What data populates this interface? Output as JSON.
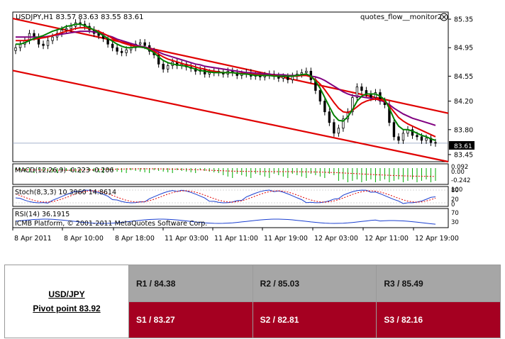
{
  "chart_header": {
    "symbol_info": "USDJPY,H1  83.57 83.63 83.55 83.61",
    "monitor_label": "quotes_flow__monitor2",
    "close_icon": "close-circle-icon"
  },
  "price_axis": {
    "ticks": [
      "85.35",
      "84.95",
      "84.55",
      "84.20",
      "83.80",
      "83.45"
    ],
    "current_price": "83.61"
  },
  "indicators": {
    "macd": {
      "label": "MACD(12,26,9) -0.223 -0.206",
      "ticks": [
        "0.092",
        "0.00",
        "-0.242"
      ]
    },
    "stoch": {
      "label": "Stoch(8,3,3) 10.3960 14.8614",
      "ticks": [
        "100",
        "80",
        "20",
        "0"
      ]
    },
    "rsi": {
      "label": "RSI(14) 36.1915",
      "ticks": [
        "70",
        "30"
      ]
    }
  },
  "copyright": "ICMB Platform, © 2001-2011 MetaQuotes Software Corp.",
  "time_axis": [
    "8 Apr 2011",
    "8 Apr 10:00",
    "8 Apr 18:00",
    "11 Apr 03:00",
    "11 Apr 11:00",
    "11 Apr 19:00",
    "12 Apr 03:00",
    "12 Apr 11:00",
    "12 Apr 19:00"
  ],
  "colors": {
    "ma_fast": "#008000",
    "ma_mid": "#e00000",
    "ma_slow": "#800080",
    "channel": "#e00000",
    "candle": "#000000",
    "resistance_bg": "#a6a6a6",
    "support_bg": "#a50021"
  },
  "pivot": {
    "pair": "USD/JPY",
    "pivot_text": "Pivot point 83.92",
    "resistance": [
      "R1 / 84.38",
      "R2 / 85.03",
      "R3 / 85.49"
    ],
    "support": [
      "S1 / 83.27",
      "S2 / 82.81",
      "S3 / 82.16"
    ]
  },
  "chart_data": {
    "type": "candlestick",
    "symbol": "USDJPY",
    "timeframe": "H1",
    "ylim": [
      83.35,
      85.45
    ],
    "last_close": 83.61,
    "close": [
      84.95,
      85.0,
      85.05,
      85.15,
      85.1,
      85.0,
      84.98,
      85.05,
      85.1,
      85.15,
      85.2,
      85.22,
      85.25,
      85.3,
      85.28,
      85.25,
      85.2,
      85.15,
      85.12,
      85.08,
      85.0,
      84.95,
      84.9,
      84.88,
      84.92,
      84.95,
      85.0,
      85.02,
      84.98,
      84.9,
      84.85,
      84.72,
      84.65,
      84.7,
      84.75,
      84.7,
      84.72,
      84.68,
      84.66,
      84.62,
      84.64,
      84.58,
      84.6,
      84.62,
      84.6,
      84.58,
      84.62,
      84.6,
      84.56,
      84.58,
      84.6,
      84.55,
      84.56,
      84.54,
      84.56,
      84.58,
      84.55,
      84.52,
      84.54,
      84.5,
      84.55,
      84.58,
      84.6,
      84.62,
      84.5,
      84.35,
      84.2,
      84.05,
      83.9,
      83.75,
      83.82,
      83.95,
      84.05,
      84.25,
      84.4,
      84.35,
      84.3,
      84.25,
      84.32,
      84.2,
      84.15,
      83.9,
      83.7,
      83.65,
      83.75,
      83.8,
      83.72,
      83.7,
      83.65,
      83.68,
      83.62,
      83.61
    ],
    "ma_fast": [
      85.0,
      85.0,
      85.02,
      85.05,
      85.08,
      85.1,
      85.12,
      85.15,
      85.18,
      85.2,
      85.22,
      85.25,
      85.26,
      85.28,
      85.28,
      85.26,
      85.23,
      85.2,
      85.16,
      85.12,
      85.08,
      85.04,
      85.0,
      84.97,
      84.95,
      84.95,
      84.96,
      84.96,
      84.95,
      84.92,
      84.88,
      84.82,
      84.77,
      84.74,
      84.72,
      84.71,
      84.7,
      84.69,
      84.67,
      84.65,
      84.63,
      84.62,
      84.61,
      84.6,
      84.6,
      84.6,
      84.6,
      84.6,
      84.59,
      84.58,
      84.58,
      84.57,
      84.56,
      84.56,
      84.56,
      84.56,
      84.55,
      84.55,
      84.55,
      84.55,
      84.55,
      84.56,
      84.57,
      84.58,
      84.55,
      84.48,
      84.38,
      84.25,
      84.12,
      84.0,
      83.93,
      83.92,
      83.98,
      84.08,
      84.2,
      84.27,
      84.3,
      84.3,
      84.3,
      84.27,
      84.22,
      84.1,
      83.95,
      83.85,
      83.8,
      83.8,
      83.78,
      83.75,
      83.72,
      83.7,
      83.67,
      83.65
    ],
    "ma_mid": [
      85.05,
      85.05,
      85.05,
      85.06,
      85.07,
      85.08,
      85.09,
      85.1,
      85.12,
      85.14,
      85.16,
      85.18,
      85.2,
      85.22,
      85.23,
      85.23,
      85.22,
      85.2,
      85.18,
      85.15,
      85.12,
      85.08,
      85.05,
      85.02,
      85.0,
      84.98,
      84.97,
      84.96,
      84.95,
      84.93,
      84.9,
      84.86,
      84.82,
      84.79,
      84.77,
      84.75,
      84.73,
      84.71,
      84.7,
      84.68,
      84.66,
      84.65,
      84.63,
      84.62,
      84.61,
      84.6,
      84.6,
      84.6,
      84.59,
      84.59,
      84.58,
      84.58,
      84.57,
      84.57,
      84.56,
      84.56,
      84.56,
      84.55,
      84.55,
      84.55,
      84.55,
      84.55,
      84.56,
      84.56,
      84.54,
      84.5,
      84.44,
      84.36,
      84.27,
      84.18,
      84.1,
      84.05,
      84.04,
      84.07,
      84.12,
      84.17,
      84.2,
      84.22,
      84.23,
      84.22,
      84.2,
      84.13,
      84.05,
      83.97,
      83.92,
      83.88,
      83.85,
      83.82,
      83.79,
      83.76,
      83.73,
      83.7
    ],
    "ma_slow": [
      85.1,
      85.1,
      85.1,
      85.1,
      85.1,
      85.1,
      85.1,
      85.11,
      85.12,
      85.13,
      85.14,
      85.15,
      85.16,
      85.17,
      85.18,
      85.18,
      85.18,
      85.17,
      85.16,
      85.14,
      85.12,
      85.1,
      85.07,
      85.05,
      85.03,
      85.01,
      84.99,
      84.97,
      84.96,
      84.94,
      84.92,
      84.89,
      84.86,
      84.84,
      84.82,
      84.8,
      84.78,
      84.76,
      84.74,
      84.72,
      84.71,
      84.69,
      84.68,
      84.67,
      84.66,
      84.65,
      84.64,
      84.63,
      84.62,
      84.61,
      84.6,
      84.6,
      84.59,
      84.59,
      84.58,
      84.58,
      84.57,
      84.57,
      84.57,
      84.56,
      84.56,
      84.56,
      84.56,
      84.56,
      84.55,
      84.54,
      84.52,
      84.49,
      84.45,
      84.41,
      84.37,
      84.33,
      84.3,
      84.28,
      84.27,
      84.26,
      84.25,
      84.24,
      84.23,
      84.21,
      84.19,
      84.15,
      84.1,
      84.06,
      84.02,
      83.99,
      83.96,
      83.94,
      83.92,
      83.9,
      83.88,
      83.86
    ],
    "channel_upper": {
      "start": [
        0,
        85.36
      ],
      "end": [
        91,
        84.03
      ]
    },
    "channel_lower": {
      "start": [
        0,
        84.63
      ],
      "end": [
        91,
        83.35
      ]
    }
  }
}
